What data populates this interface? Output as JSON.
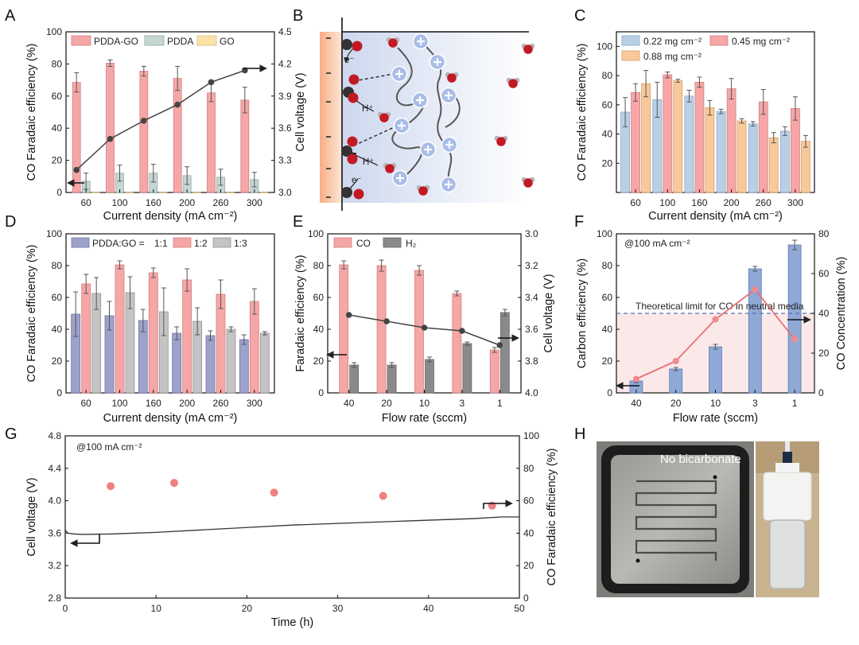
{
  "panels": {
    "A": "A",
    "B": "B",
    "C": "C",
    "D": "D",
    "E": "E",
    "F": "F",
    "G": "G",
    "H": "H"
  },
  "colors": {
    "pink": "#f4a7a6",
    "pinkEdge": "#d87d7d",
    "teal": "#c5d7d3",
    "tealEdge": "#93aaa5",
    "cream": "#fbe2a9",
    "creamEdge": "#d7bd7c",
    "blue": "#b9cfe6",
    "blueEdge": "#8aa8c9",
    "orange": "#f9c99a",
    "orangeEdge": "#d6a06a",
    "lav": "#9da2cb",
    "lavEdge": "#6f74a5",
    "grey": "#c4c4c4",
    "greyEdge": "#939393",
    "darkgrey": "#8a8a8a",
    "steelblue": "#8fa8d6",
    "steelEdge": "#5d7db3",
    "line": "#444444",
    "redline": "#e86f73"
  },
  "chart_data": [
    {
      "id": "A",
      "type": "bar",
      "categories": [
        "60",
        "100",
        "160",
        "200",
        "260",
        "300"
      ],
      "xlabel": "Current density (mA cm⁻²)",
      "ylabel": "CO Faradaic efficiency (%)",
      "y2label": "Cell voltage (V)",
      "ylim": [
        0,
        100
      ],
      "yticks": [
        "0",
        "20",
        "40",
        "60",
        "80",
        "100"
      ],
      "y2lim": [
        3.0,
        4.5
      ],
      "y2ticks": [
        "3.0",
        "3.3",
        "3.6",
        "3.9",
        "4.2",
        "4.5"
      ],
      "series": [
        {
          "name": "PDDA-GO",
          "values": [
            68.5,
            80.5,
            75.5,
            71,
            62,
            57.5
          ],
          "errors": [
            6,
            2,
            3,
            7.5,
            5.5,
            8
          ]
        },
        {
          "name": "PDDA",
          "values": [
            7,
            12,
            12,
            10.5,
            9.5,
            8
          ],
          "errors": [
            5,
            5,
            5.5,
            5.5,
            5,
            4.5
          ]
        },
        {
          "name": "GO",
          "values": [
            0,
            0,
            0,
            0,
            0,
            0
          ],
          "errors": [
            0,
            0,
            0,
            0,
            0,
            0
          ]
        }
      ],
      "voltage": [
        3.21,
        3.5,
        3.67,
        3.82,
        4.03,
        4.14
      ]
    },
    {
      "id": "C",
      "type": "bar",
      "categories": [
        "60",
        "100",
        "160",
        "200",
        "260",
        "300"
      ],
      "xlabel": "Current density (mA cm⁻²)",
      "ylabel": "CO Faradaic efficiency (%)",
      "ylim": [
        0,
        110
      ],
      "yticks": [
        "20",
        "40",
        "60",
        "80",
        "100"
      ],
      "series": [
        {
          "name": "0.22 mg cm⁻²",
          "values": [
            55,
            63.5,
            66,
            55.5,
            47,
            42
          ],
          "errors": [
            10,
            12,
            4,
            1.5,
            1.5,
            3
          ]
        },
        {
          "name": "0.45 mg cm⁻²",
          "values": [
            68.5,
            80.5,
            75.5,
            71,
            62,
            57.5
          ],
          "errors": [
            6,
            2,
            3.5,
            7,
            8.5,
            8
          ]
        },
        {
          "name": "0.88 mg cm⁻²",
          "values": [
            74.5,
            76.5,
            58,
            49,
            37.5,
            35
          ],
          "errors": [
            9,
            1,
            5,
            1.5,
            3.5,
            4
          ]
        }
      ]
    },
    {
      "id": "D",
      "type": "bar",
      "categories": [
        "60",
        "100",
        "160",
        "200",
        "260",
        "300"
      ],
      "xlabel": "Current density (mA cm⁻²)",
      "ylabel": "CO Faradaic efficiency (%)",
      "ylim": [
        0,
        100
      ],
      "yticks": [
        "0",
        "20",
        "40",
        "60",
        "80",
        "100"
      ],
      "legend_prefix": "PDDA:GO = ",
      "series": [
        {
          "name": "1:1",
          "values": [
            49.5,
            48.5,
            45.5,
            37.5,
            36,
            33.5
          ],
          "errors": [
            14,
            9,
            7,
            4,
            3,
            3
          ]
        },
        {
          "name": "1:2",
          "values": [
            68.5,
            80.5,
            75.5,
            71,
            62,
            57.5
          ],
          "errors": [
            6,
            2.5,
            3,
            7,
            9,
            8
          ]
        },
        {
          "name": "1:3",
          "values": [
            62.5,
            63,
            51,
            45,
            40,
            37.5
          ],
          "errors": [
            10,
            10,
            15,
            8.5,
            1.5,
            1
          ]
        }
      ]
    },
    {
      "id": "E",
      "type": "bar",
      "categories": [
        "40",
        "20",
        "10",
        "3",
        "1"
      ],
      "xlabel": "Flow rate (sccm)",
      "ylabel": "Faradaic efficiency (%)",
      "y2label": "Cell voltage (V)",
      "ylim": [
        0,
        100
      ],
      "yticks": [
        "0",
        "20",
        "40",
        "60",
        "80",
        "100"
      ],
      "y2lim": [
        4.0,
        3.0
      ],
      "y2ticks": [
        "3.0",
        "3.2",
        "3.4",
        "3.6",
        "3.8",
        "4.0"
      ],
      "series": [
        {
          "name": "CO",
          "values": [
            80.5,
            80,
            77,
            62.5,
            27
          ],
          "errors": [
            2.5,
            3.5,
            3,
            1.5,
            1.5
          ]
        },
        {
          "name": "H₂",
          "values": [
            17.5,
            17.5,
            21,
            31,
            50.5
          ],
          "errors": [
            1.5,
            1.5,
            1.5,
            1,
            2
          ]
        }
      ],
      "voltage": [
        3.51,
        3.55,
        3.59,
        3.61,
        3.7
      ]
    },
    {
      "id": "F",
      "type": "bar",
      "categories": [
        "40",
        "20",
        "10",
        "3",
        "1"
      ],
      "xlabel": "Flow rate (sccm)",
      "ylabel": "Carbon efficiency (%)",
      "y2label": "CO Concentration (%)",
      "ylim": [
        0,
        100
      ],
      "yticks": [
        "0",
        "20",
        "40",
        "60",
        "80",
        "100"
      ],
      "y2lim": [
        0,
        80
      ],
      "y2ticks": [
        "0",
        "20",
        "40",
        "60",
        "80"
      ],
      "annotation": "@100 mA cm⁻²",
      "limit_label": "Theoretical limit for CO in neutral media",
      "limit_value": 50,
      "series": [
        {
          "name": "Carbon efficiency",
          "values": [
            7.5,
            15,
            29,
            78,
            93
          ],
          "errors": [
            1,
            1,
            1.5,
            1.5,
            3
          ]
        },
        {
          "name": "CO Concentration",
          "values": [
            7,
            16,
            37,
            52,
            27
          ]
        }
      ]
    },
    {
      "id": "G",
      "type": "line",
      "xlabel": "Time (h)",
      "ylabel": "Cell voltage (V)",
      "y2label": "CO Faradaic efficiency (%)",
      "xlim": [
        0,
        50
      ],
      "xticks": [
        "0",
        "10",
        "20",
        "30",
        "40",
        "50"
      ],
      "ylim": [
        2.8,
        4.8
      ],
      "yticks": [
        "2.8",
        "3.2",
        "3.6",
        "4.0",
        "4.4",
        "4.8"
      ],
      "y2lim": [
        0,
        100
      ],
      "y2ticks": [
        "0",
        "20",
        "40",
        "60",
        "80",
        "100"
      ],
      "annotation": "@100 mA cm⁻²",
      "voltage": {
        "x": [
          0,
          0.3,
          1,
          2,
          5,
          10,
          15,
          20,
          25,
          30,
          35,
          40,
          45,
          48,
          50
        ],
        "y": [
          3.64,
          3.6,
          3.59,
          3.585,
          3.59,
          3.61,
          3.64,
          3.67,
          3.7,
          3.72,
          3.74,
          3.76,
          3.78,
          3.8,
          3.8
        ]
      },
      "faradaic": {
        "x": [
          5,
          12,
          23,
          35,
          47
        ],
        "y": [
          69,
          71,
          65,
          63,
          57
        ]
      }
    }
  ],
  "schematic": {
    "electron1": "e⁻",
    "electron2": "e⁻",
    "proton1": "H⁺",
    "proton2": "H⁺"
  },
  "photo": {
    "caption": "No bicarbonate"
  }
}
